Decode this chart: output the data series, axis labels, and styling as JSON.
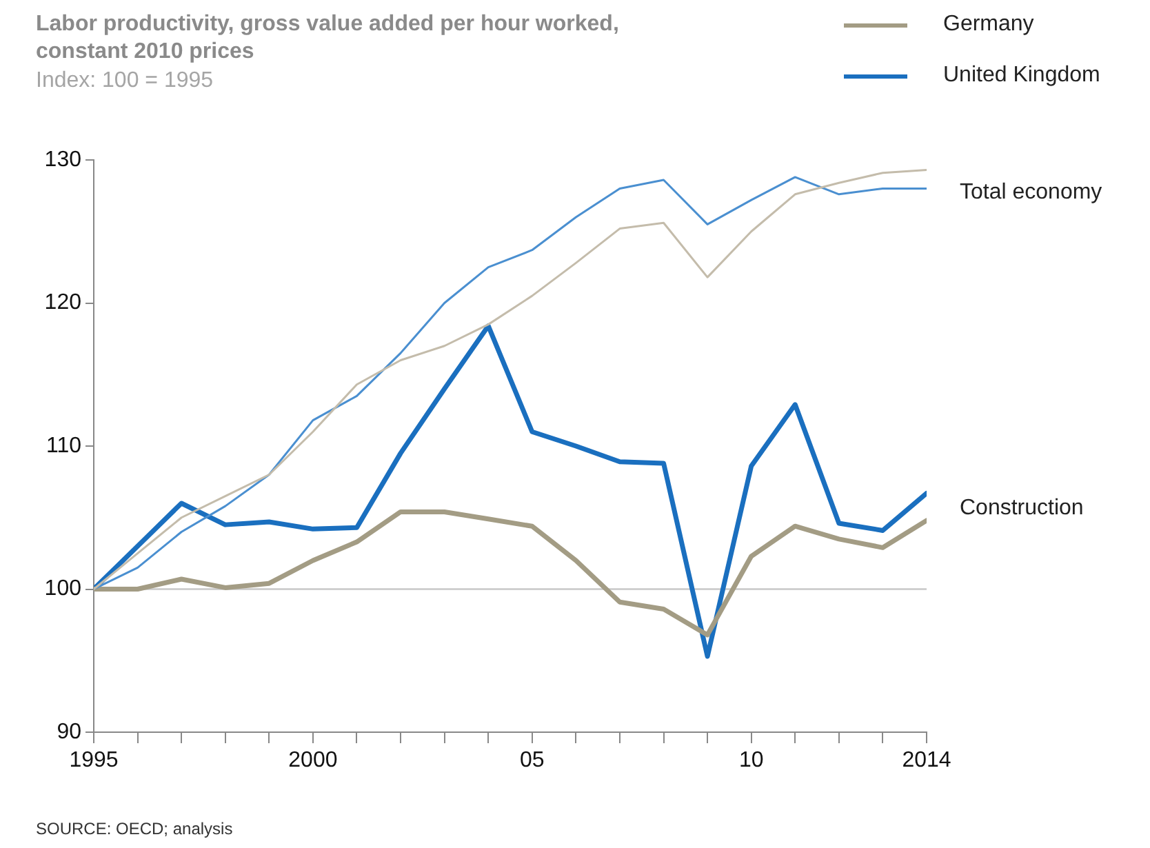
{
  "chart_data": {
    "type": "line",
    "title": "Labor productivity, gross value added per hour worked, constant 2010 prices",
    "subtitle": "Index: 100 = 1995",
    "x": [
      1995,
      1996,
      1997,
      1998,
      1999,
      2000,
      2001,
      2002,
      2003,
      2004,
      2005,
      2006,
      2007,
      2008,
      2009,
      2010,
      2011,
      2012,
      2013,
      2014
    ],
    "series": [
      {
        "color": "#c4bcab",
        "values": [
          100,
          102.5,
          105,
          106.5,
          108,
          111,
          114.3,
          116,
          117,
          118.5,
          120.5,
          122.8,
          125.2,
          125.6,
          121.8,
          125,
          127.6,
          128.4,
          129.1,
          129.3
        ]
      },
      {
        "color": "#4a8fd0",
        "values": [
          100,
          101.5,
          104,
          105.8,
          108,
          111.8,
          113.5,
          116.5,
          120,
          122.5,
          123.7,
          126,
          128,
          128.6,
          125.5,
          127.2,
          128.8,
          127.6,
          128,
          128
        ]
      },
      {
        "name": "Germany",
        "color": "#a39c84",
        "values": [
          100,
          100,
          100.7,
          100.1,
          100.4,
          102,
          103.3,
          105.4,
          105.4,
          104.9,
          104.4,
          102,
          99.1,
          98.6,
          96.8,
          102.3,
          104.4,
          103.5,
          102.9,
          104.8
        ]
      },
      {
        "name": "United Kingdom",
        "color": "#1a6fbf",
        "values": [
          100,
          103,
          106,
          104.5,
          104.7,
          104.2,
          104.3,
          109.5,
          114,
          118.4,
          111,
          110,
          108.9,
          108.8,
          95.3,
          108.6,
          112.9,
          104.6,
          104.1,
          106.7
        ]
      }
    ],
    "xlim": [
      1995,
      2014
    ],
    "xticks": [
      1995,
      {
        "value": 1996,
        "label": null
      },
      {
        "value": 1997,
        "label": null
      },
      {
        "value": 1998,
        "label": null
      },
      {
        "value": 1999,
        "label": null
      },
      2000,
      {
        "value": 2001,
        "label": null
      },
      {
        "value": 2002,
        "label": null
      },
      {
        "value": 2003,
        "label": null
      },
      {
        "value": 2004,
        "label": null
      },
      {
        "value": 2005,
        "label": "05"
      },
      {
        "value": 2006,
        "label": null
      },
      {
        "value": 2007,
        "label": null
      },
      {
        "value": 2008,
        "label": null
      },
      {
        "value": 2009,
        "label": null
      },
      {
        "value": 2010,
        "label": "10"
      },
      {
        "value": 2011,
        "label": null
      },
      {
        "value": 2012,
        "label": null
      },
      {
        "value": 2013,
        "label": null
      },
      2014
    ],
    "ylim": [
      90,
      130
    ],
    "yticks": [
      90,
      100,
      110,
      120,
      130
    ],
    "ref_lines": [
      {
        "axis": "y",
        "value": 100,
        "color": "#c8c8c8"
      }
    ],
    "annotations": [
      "Total economy",
      "Construction",
      "SOURCE:  OECD; analysis"
    ],
    "legend": "top right",
    "marker": "none",
    "line_style": "solid"
  }
}
